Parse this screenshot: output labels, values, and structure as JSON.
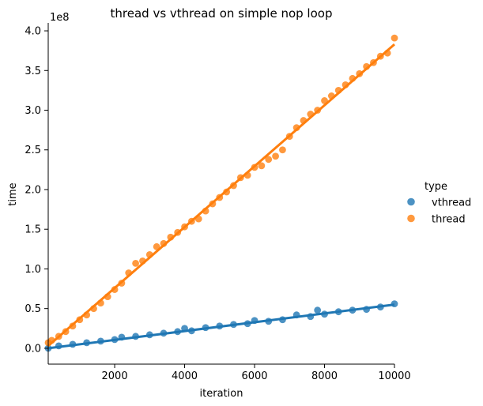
{
  "chart_data": {
    "type": "scatter",
    "title": "thread vs vthread on simple nop loop",
    "xlabel": "iteration",
    "ylabel": "time",
    "y_scale_label": "1e8",
    "xlim": [
      100,
      10000
    ],
    "ylim": [
      -0.2,
      4.1
    ],
    "y_unit": "1e8",
    "x_ticks": [
      2000,
      4000,
      6000,
      8000,
      10000
    ],
    "y_ticks": [
      0.0,
      0.5,
      1.0,
      1.5,
      2.0,
      2.5,
      3.0,
      3.5,
      4.0
    ],
    "x_tick_labels": [
      "2000",
      "4000",
      "6000",
      "8000",
      "10000"
    ],
    "y_tick_labels": [
      "0.0",
      "0.5",
      "1.0",
      "1.5",
      "2.0",
      "2.5",
      "3.0",
      "3.5",
      "4.0"
    ],
    "grid": false,
    "legend": {
      "title": "type",
      "placement": "right",
      "entries": [
        {
          "label": "vthread",
          "color": "#1f77b4"
        },
        {
          "label": "thread",
          "color": "#ff7f0e"
        }
      ]
    },
    "series": [
      {
        "name": "vthread",
        "color": "#1f77b4",
        "trend": {
          "x": [
            100,
            10000
          ],
          "y": [
            0.0,
            0.55
          ]
        },
        "points": [
          [
            100,
            0.0
          ],
          [
            400,
            0.03
          ],
          [
            800,
            0.05
          ],
          [
            1200,
            0.07
          ],
          [
            1600,
            0.09
          ],
          [
            2000,
            0.11
          ],
          [
            2200,
            0.14
          ],
          [
            2600,
            0.15
          ],
          [
            3000,
            0.17
          ],
          [
            3400,
            0.19
          ],
          [
            3800,
            0.21
          ],
          [
            4000,
            0.25
          ],
          [
            4200,
            0.22
          ],
          [
            4600,
            0.26
          ],
          [
            5000,
            0.28
          ],
          [
            5400,
            0.3
          ],
          [
            5800,
            0.31
          ],
          [
            6000,
            0.35
          ],
          [
            6400,
            0.34
          ],
          [
            6800,
            0.36
          ],
          [
            7200,
            0.42
          ],
          [
            7600,
            0.4
          ],
          [
            7800,
            0.48
          ],
          [
            8000,
            0.43
          ],
          [
            8400,
            0.46
          ],
          [
            8800,
            0.48
          ],
          [
            9200,
            0.49
          ],
          [
            9600,
            0.52
          ],
          [
            10000,
            0.56
          ]
        ]
      },
      {
        "name": "thread",
        "color": "#ff7f0e",
        "trend": {
          "x": [
            100,
            10000
          ],
          "y": [
            0.03,
            3.83
          ]
        },
        "points": [
          [
            100,
            0.07
          ],
          [
            200,
            0.1
          ],
          [
            400,
            0.15
          ],
          [
            600,
            0.21
          ],
          [
            800,
            0.28
          ],
          [
            1000,
            0.36
          ],
          [
            1200,
            0.42
          ],
          [
            1400,
            0.5
          ],
          [
            1600,
            0.57
          ],
          [
            1800,
            0.65
          ],
          [
            2000,
            0.74
          ],
          [
            2200,
            0.82
          ],
          [
            2400,
            0.95
          ],
          [
            2600,
            1.07
          ],
          [
            2800,
            1.1
          ],
          [
            3000,
            1.18
          ],
          [
            3200,
            1.28
          ],
          [
            3400,
            1.32
          ],
          [
            3600,
            1.4
          ],
          [
            3800,
            1.46
          ],
          [
            4000,
            1.53
          ],
          [
            4200,
            1.6
          ],
          [
            4400,
            1.63
          ],
          [
            4600,
            1.73
          ],
          [
            4800,
            1.82
          ],
          [
            5000,
            1.9
          ],
          [
            5200,
            1.97
          ],
          [
            5400,
            2.05
          ],
          [
            5600,
            2.15
          ],
          [
            5800,
            2.18
          ],
          [
            6000,
            2.28
          ],
          [
            6200,
            2.3
          ],
          [
            6400,
            2.38
          ],
          [
            6600,
            2.42
          ],
          [
            6800,
            2.5
          ],
          [
            7000,
            2.67
          ],
          [
            7200,
            2.78
          ],
          [
            7400,
            2.87
          ],
          [
            7600,
            2.95
          ],
          [
            7800,
            3.0
          ],
          [
            8000,
            3.12
          ],
          [
            8200,
            3.18
          ],
          [
            8400,
            3.25
          ],
          [
            8600,
            3.32
          ],
          [
            8800,
            3.4
          ],
          [
            9000,
            3.46
          ],
          [
            9200,
            3.55
          ],
          [
            9400,
            3.6
          ],
          [
            9600,
            3.68
          ],
          [
            9800,
            3.72
          ],
          [
            10000,
            3.91
          ]
        ]
      }
    ]
  }
}
